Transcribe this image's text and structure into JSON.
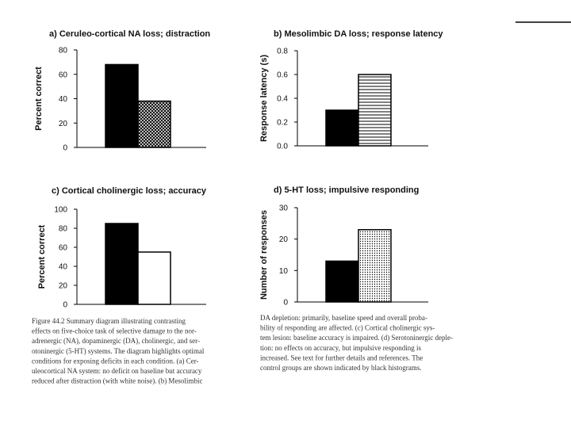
{
  "chart_data": [
    {
      "type": "bar",
      "title": "a) Ceruleo-cortical NA loss; distraction",
      "y_label": "Percent correct",
      "categories": [
        null,
        null
      ],
      "values": [
        68,
        38
      ],
      "colors": [
        "#000000",
        "#000000"
      ],
      "patterns": [
        "solid",
        "crosshatch"
      ],
      "ylim": [
        0,
        80
      ],
      "yticks": [
        0,
        20,
        40,
        60,
        80
      ]
    },
    {
      "type": "bar",
      "title": "b) Mesolimbic DA loss; response latency",
      "y_label": "Response latency (s)",
      "categories": [
        null,
        null
      ],
      "values": [
        0.3,
        0.6
      ],
      "colors": [
        "#000000",
        "#000000"
      ],
      "patterns": [
        "solid",
        "horizontal-stripes"
      ],
      "ylim": [
        0,
        0.8
      ],
      "yticks": [
        {
          "value": 0,
          "label": "0.0"
        },
        0.2,
        0.4,
        0.6,
        0.8
      ]
    },
    {
      "type": "bar",
      "title": "c) Cortical cholinergic loss; accuracy",
      "y_label": "Percent correct",
      "categories": [
        null,
        null
      ],
      "values": [
        85,
        55
      ],
      "colors": [
        "#000000",
        "#000000"
      ],
      "patterns": [
        "solid",
        "outline"
      ],
      "ylim": [
        0,
        100
      ],
      "yticks": [
        0,
        20,
        40,
        60,
        80,
        100
      ]
    },
    {
      "type": "bar",
      "title": "d) 5-HT loss; impulsive responding",
      "y_label": "Number of responses",
      "categories": [
        null,
        null
      ],
      "values": [
        13,
        23
      ],
      "colors": [
        "#000000",
        "#000000"
      ],
      "patterns": [
        "solid",
        "dots"
      ],
      "ylim": [
        0,
        30
      ],
      "yticks": [
        0,
        10,
        20,
        30
      ]
    }
  ],
  "caption": {
    "left": [
      "Figure 44.2  Summary diagram illustrating contrasting",
      "effects on five-choice task of selective damage to the nor-",
      "adrenergic (NA), dopaminergic (DA), cholinergic, and ser-",
      "otoninergic (5-HT) systems. The diagram highlights optimal",
      "conditions for exposing deficits in each condition. (a) Cer-",
      "uleocortical NA system: no deficit on baseline but accuracy",
      "reduced after distraction (with white noise). (b) Mesolimbic"
    ],
    "right": [
      "DA depletion: primarily, baseline speed and overall proba-",
      "bility of responding are affected. (c) Cortical cholinergic sys-",
      "tem lesion: baseline accuracy is impaired. (d) Serotoninergic deple-",
      "tion: no effects on accuracy, but impulsive responding is",
      "increased. See text for further details and references. The",
      "control groups are shown indicated by black histograms."
    ]
  }
}
